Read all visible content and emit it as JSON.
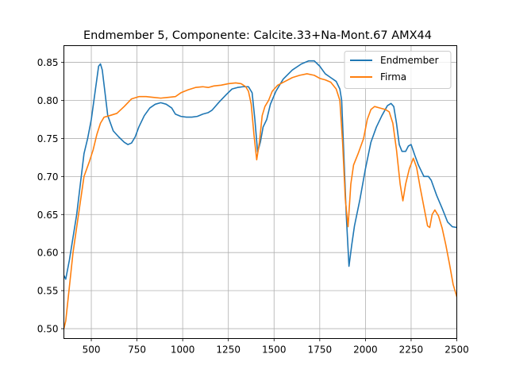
{
  "chart_data": {
    "type": "line",
    "title": "Endmember 5, Componente: Calcite.33+Na-Mont.67 AMX44",
    "xlabel": "",
    "ylabel": "",
    "xlim": [
      350,
      2500
    ],
    "ylim": [
      0.487,
      0.872
    ],
    "xticks": [
      500,
      750,
      1000,
      1250,
      1500,
      1750,
      2000,
      2250,
      2500
    ],
    "yticks": [
      0.5,
      0.55,
      0.6,
      0.65,
      0.7,
      0.75,
      0.8,
      0.85
    ],
    "ytick_labels": [
      "0.50",
      "0.55",
      "0.60",
      "0.65",
      "0.70",
      "0.75",
      "0.80",
      "0.85"
    ],
    "grid": true,
    "legend_position": "top-right",
    "series": [
      {
        "name": "Endmember",
        "color": "#1f77b4",
        "points": [
          [
            350,
            0.57
          ],
          [
            360,
            0.565
          ],
          [
            380,
            0.59
          ],
          [
            400,
            0.62
          ],
          [
            420,
            0.65
          ],
          [
            440,
            0.69
          ],
          [
            460,
            0.73
          ],
          [
            480,
            0.75
          ],
          [
            500,
            0.775
          ],
          [
            520,
            0.81
          ],
          [
            540,
            0.845
          ],
          [
            550,
            0.848
          ],
          [
            560,
            0.84
          ],
          [
            570,
            0.82
          ],
          [
            590,
            0.78
          ],
          [
            620,
            0.76
          ],
          [
            650,
            0.752
          ],
          [
            680,
            0.745
          ],
          [
            700,
            0.742
          ],
          [
            720,
            0.744
          ],
          [
            740,
            0.752
          ],
          [
            760,
            0.765
          ],
          [
            790,
            0.78
          ],
          [
            820,
            0.79
          ],
          [
            850,
            0.795
          ],
          [
            880,
            0.797
          ],
          [
            910,
            0.795
          ],
          [
            940,
            0.79
          ],
          [
            960,
            0.782
          ],
          [
            990,
            0.779
          ],
          [
            1020,
            0.778
          ],
          [
            1050,
            0.778
          ],
          [
            1080,
            0.779
          ],
          [
            1110,
            0.782
          ],
          [
            1140,
            0.784
          ],
          [
            1160,
            0.787
          ],
          [
            1200,
            0.798
          ],
          [
            1240,
            0.808
          ],
          [
            1270,
            0.815
          ],
          [
            1300,
            0.817
          ],
          [
            1330,
            0.818
          ],
          [
            1360,
            0.818
          ],
          [
            1380,
            0.81
          ],
          [
            1395,
            0.775
          ],
          [
            1410,
            0.732
          ],
          [
            1425,
            0.745
          ],
          [
            1440,
            0.765
          ],
          [
            1460,
            0.775
          ],
          [
            1480,
            0.795
          ],
          [
            1510,
            0.812
          ],
          [
            1550,
            0.828
          ],
          [
            1600,
            0.84
          ],
          [
            1650,
            0.848
          ],
          [
            1690,
            0.852
          ],
          [
            1720,
            0.852
          ],
          [
            1750,
            0.845
          ],
          [
            1780,
            0.835
          ],
          [
            1810,
            0.83
          ],
          [
            1840,
            0.825
          ],
          [
            1860,
            0.815
          ],
          [
            1870,
            0.8
          ],
          [
            1880,
            0.74
          ],
          [
            1895,
            0.65
          ],
          [
            1910,
            0.582
          ],
          [
            1925,
            0.61
          ],
          [
            1940,
            0.635
          ],
          [
            1970,
            0.67
          ],
          [
            2000,
            0.71
          ],
          [
            2030,
            0.745
          ],
          [
            2060,
            0.765
          ],
          [
            2090,
            0.78
          ],
          [
            2120,
            0.793
          ],
          [
            2140,
            0.796
          ],
          [
            2155,
            0.792
          ],
          [
            2170,
            0.77
          ],
          [
            2185,
            0.742
          ],
          [
            2200,
            0.733
          ],
          [
            2220,
            0.733
          ],
          [
            2235,
            0.74
          ],
          [
            2250,
            0.742
          ],
          [
            2270,
            0.728
          ],
          [
            2290,
            0.715
          ],
          [
            2310,
            0.705
          ],
          [
            2320,
            0.7
          ],
          [
            2345,
            0.7
          ],
          [
            2360,
            0.695
          ],
          [
            2390,
            0.675
          ],
          [
            2420,
            0.658
          ],
          [
            2450,
            0.64
          ],
          [
            2475,
            0.634
          ],
          [
            2500,
            0.633
          ]
        ]
      },
      {
        "name": "Firma",
        "color": "#ff7f0e",
        "points": [
          [
            350,
            0.5
          ],
          [
            360,
            0.51
          ],
          [
            380,
            0.555
          ],
          [
            400,
            0.6
          ],
          [
            430,
            0.65
          ],
          [
            460,
            0.7
          ],
          [
            490,
            0.72
          ],
          [
            510,
            0.735
          ],
          [
            530,
            0.755
          ],
          [
            550,
            0.77
          ],
          [
            570,
            0.778
          ],
          [
            600,
            0.78
          ],
          [
            640,
            0.783
          ],
          [
            680,
            0.792
          ],
          [
            720,
            0.802
          ],
          [
            760,
            0.805
          ],
          [
            800,
            0.805
          ],
          [
            840,
            0.804
          ],
          [
            880,
            0.803
          ],
          [
            920,
            0.804
          ],
          [
            960,
            0.805
          ],
          [
            990,
            0.81
          ],
          [
            1030,
            0.814
          ],
          [
            1070,
            0.817
          ],
          [
            1110,
            0.818
          ],
          [
            1140,
            0.817
          ],
          [
            1170,
            0.819
          ],
          [
            1210,
            0.82
          ],
          [
            1250,
            0.822
          ],
          [
            1290,
            0.823
          ],
          [
            1320,
            0.822
          ],
          [
            1345,
            0.818
          ],
          [
            1360,
            0.812
          ],
          [
            1375,
            0.795
          ],
          [
            1390,
            0.755
          ],
          [
            1405,
            0.722
          ],
          [
            1420,
            0.745
          ],
          [
            1435,
            0.78
          ],
          [
            1450,
            0.792
          ],
          [
            1470,
            0.8
          ],
          [
            1490,
            0.812
          ],
          [
            1520,
            0.82
          ],
          [
            1560,
            0.825
          ],
          [
            1600,
            0.83
          ],
          [
            1640,
            0.833
          ],
          [
            1680,
            0.835
          ],
          [
            1720,
            0.833
          ],
          [
            1750,
            0.829
          ],
          [
            1780,
            0.827
          ],
          [
            1810,
            0.824
          ],
          [
            1840,
            0.815
          ],
          [
            1860,
            0.8
          ],
          [
            1875,
            0.745
          ],
          [
            1890,
            0.67
          ],
          [
            1905,
            0.634
          ],
          [
            1920,
            0.69
          ],
          [
            1935,
            0.715
          ],
          [
            1960,
            0.73
          ],
          [
            1990,
            0.75
          ],
          [
            2010,
            0.775
          ],
          [
            2030,
            0.788
          ],
          [
            2050,
            0.792
          ],
          [
            2080,
            0.79
          ],
          [
            2110,
            0.788
          ],
          [
            2130,
            0.785
          ],
          [
            2150,
            0.77
          ],
          [
            2170,
            0.735
          ],
          [
            2190,
            0.69
          ],
          [
            2205,
            0.668
          ],
          [
            2220,
            0.69
          ],
          [
            2240,
            0.71
          ],
          [
            2262,
            0.724
          ],
          [
            2280,
            0.712
          ],
          [
            2300,
            0.685
          ],
          [
            2320,
            0.66
          ],
          [
            2340,
            0.635
          ],
          [
            2352,
            0.633
          ],
          [
            2365,
            0.65
          ],
          [
            2380,
            0.656
          ],
          [
            2400,
            0.648
          ],
          [
            2420,
            0.632
          ],
          [
            2440,
            0.61
          ],
          [
            2460,
            0.585
          ],
          [
            2480,
            0.558
          ],
          [
            2500,
            0.542
          ]
        ]
      }
    ]
  }
}
